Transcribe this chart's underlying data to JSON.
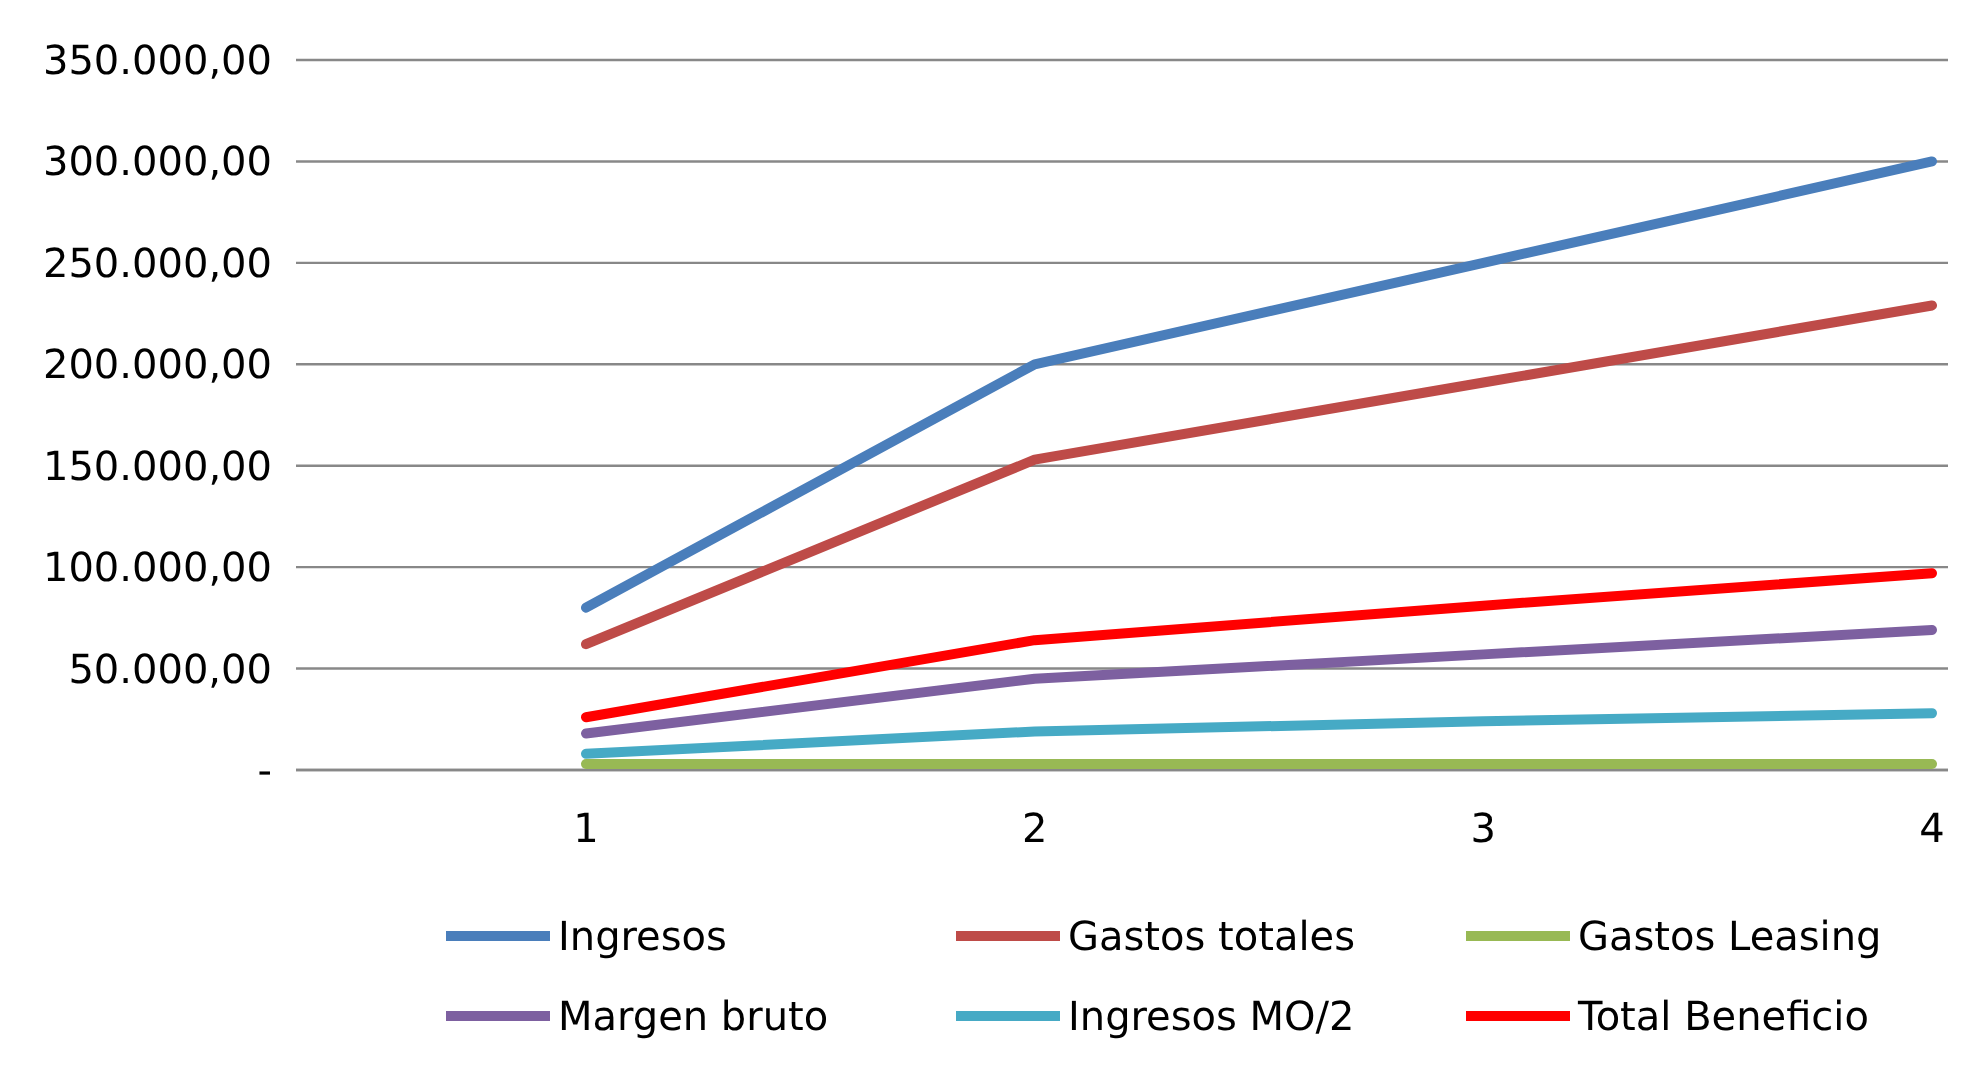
{
  "chart_data": {
    "type": "line",
    "categories": [
      "1",
      "2",
      "3",
      "4"
    ],
    "series": [
      {
        "name": "Ingresos",
        "color": "#4a7ebb",
        "values": [
          80000,
          200000,
          250000,
          300000
        ]
      },
      {
        "name": "Gastos totales",
        "color": "#be4b48",
        "values": [
          62000,
          153000,
          191000,
          229000
        ]
      },
      {
        "name": "Gastos Leasing",
        "color": "#98b954",
        "values": [
          3000,
          3000,
          3000,
          3000
        ]
      },
      {
        "name": "Margen bruto",
        "color": "#7d60a0",
        "values": [
          18000,
          45000,
          57000,
          69000
        ]
      },
      {
        "name": "Ingresos MO/2",
        "color": "#46aac5",
        "values": [
          8000,
          19000,
          24000,
          28000
        ]
      },
      {
        "name": "Total Beneficio",
        "color": "#ff0000",
        "values": [
          26000,
          64000,
          81000,
          97000
        ]
      }
    ],
    "ylim": [
      0,
      350000
    ],
    "yticks": [
      {
        "value": 0,
        "label": "-"
      },
      {
        "value": 50000,
        "label": "50.000,00"
      },
      {
        "value": 100000,
        "label": "100.000,00"
      },
      {
        "value": 150000,
        "label": "150.000,00"
      },
      {
        "value": 200000,
        "label": "200.000,00"
      },
      {
        "value": 250000,
        "label": "250.000,00"
      },
      {
        "value": 300000,
        "label": "300.000,00"
      },
      {
        "value": 350000,
        "label": "350.000,00"
      }
    ],
    "grid": "y",
    "legend": "bottom",
    "marker": "none",
    "line_style": "solid"
  }
}
